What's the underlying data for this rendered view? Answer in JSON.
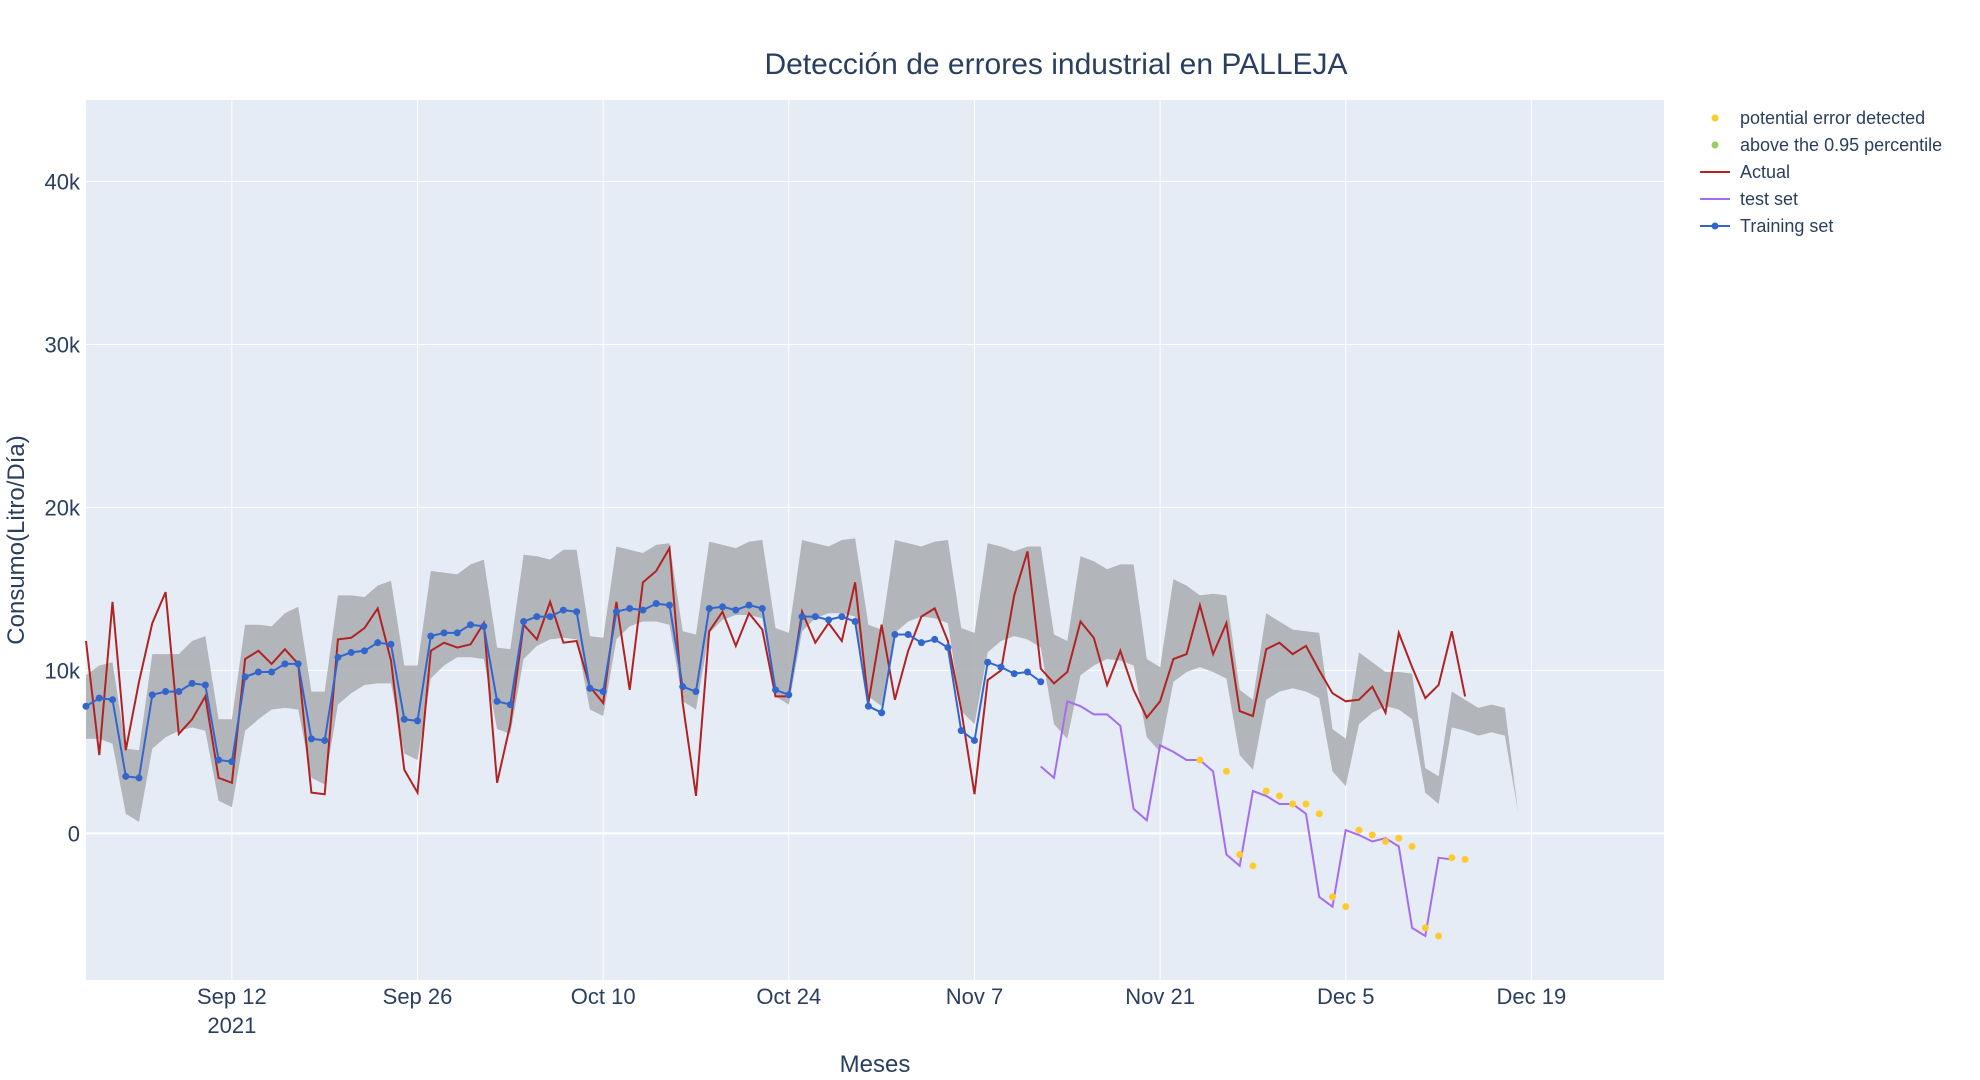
{
  "chart_data": {
    "type": "line",
    "title": "Detección de errores industrial en PALLEJA",
    "xlabel": "Meses",
    "ylabel": "Consumo(Litro/Día)",
    "x_start": "2021-09-01",
    "xlim": [
      "2021-09-01",
      "2021-12-29"
    ],
    "ylim": [
      -9000,
      45000
    ],
    "x_ticks": [
      {
        "date": "2021-09-12",
        "label": "Sep 12",
        "sublabel": "2021"
      },
      {
        "date": "2021-09-26",
        "label": "Sep 26",
        "sublabel": ""
      },
      {
        "date": "2021-10-10",
        "label": "Oct 10",
        "sublabel": ""
      },
      {
        "date": "2021-10-24",
        "label": "Oct 24",
        "sublabel": ""
      },
      {
        "date": "2021-11-07",
        "label": "Nov 7",
        "sublabel": ""
      },
      {
        "date": "2021-11-21",
        "label": "Nov 21",
        "sublabel": ""
      },
      {
        "date": "2021-12-05",
        "label": "Dec 5",
        "sublabel": ""
      },
      {
        "date": "2021-12-19",
        "label": "Dec 19",
        "sublabel": ""
      }
    ],
    "y_ticks": [
      {
        "value": 0,
        "label": "0"
      },
      {
        "value": 10000,
        "label": "10k"
      },
      {
        "value": 20000,
        "label": "20k"
      },
      {
        "value": 30000,
        "label": "30k"
      },
      {
        "value": 40000,
        "label": "40k"
      }
    ],
    "legend": {
      "position": "top-right",
      "items": [
        {
          "label": "potential error detected",
          "color": "#fecb2f",
          "symbol": "marker"
        },
        {
          "label": "above the 0.95 percentile",
          "color": "#9ccc65",
          "symbol": "marker"
        },
        {
          "label": "Actual",
          "color": "#b22222",
          "symbol": "line"
        },
        {
          "label": "test set",
          "color": "#a66cf0",
          "symbol": "line"
        },
        {
          "label": "Training set",
          "color": "#3366cc",
          "symbol": "line+marker"
        }
      ]
    },
    "band": {
      "name": "prediction interval",
      "color": "#a9abae",
      "upper": [
        9700,
        10300,
        10500,
        5200,
        5100,
        11000,
        11000,
        11000,
        11800,
        12100,
        7000,
        7000,
        12800,
        12800,
        12700,
        13500,
        13900,
        8700,
        8700,
        14600,
        14600,
        14500,
        15200,
        15500,
        10300,
        10300,
        16100,
        16000,
        15900,
        16500,
        16800,
        11400,
        11300,
        17100,
        17000,
        16800,
        17400,
        17400,
        12100,
        12000,
        17600,
        17400,
        17200,
        17700,
        17800,
        12400,
        12200,
        17900,
        17700,
        17500,
        17900,
        18000,
        12600,
        12300,
        18000,
        17800,
        17600,
        18000,
        18100,
        12800,
        12500,
        18000,
        17800,
        17600,
        17900,
        18000,
        12600,
        12300,
        17800,
        17600,
        17300,
        17600,
        17600,
        12200,
        11800,
        17000,
        16700,
        16200,
        16500,
        16500,
        10700,
        10200,
        15600,
        15200,
        14600,
        14700,
        14600,
        8800,
        8200,
        13500,
        13000,
        12500,
        12400,
        12300,
        6400,
        5800,
        11100,
        10500,
        9900,
        9900,
        9800,
        4000,
        3500,
        8700,
        8200,
        7700,
        7900,
        7700,
        1300
      ],
      "lower": [
        5800,
        5800,
        5500,
        1200,
        700,
        5200,
        5900,
        6300,
        6500,
        6300,
        2000,
        1600,
        6300,
        7000,
        7600,
        7700,
        7600,
        3400,
        3000,
        7900,
        8600,
        9100,
        9200,
        9200,
        4900,
        4500,
        9500,
        10300,
        10800,
        10800,
        10700,
        6400,
        6100,
        10700,
        11500,
        11900,
        12000,
        11900,
        7600,
        7200,
        11900,
        12700,
        13000,
        13000,
        12800,
        8100,
        7600,
        12300,
        13100,
        13400,
        13400,
        13200,
        8400,
        7900,
        12400,
        13200,
        13500,
        13500,
        13300,
        8400,
        7800,
        12300,
        13000,
        13300,
        13200,
        12900,
        7500,
        6700,
        11100,
        11800,
        12100,
        11900,
        11400,
        6700,
        5800,
        9700,
        10300,
        10700,
        10600,
        10300,
        5900,
        5000,
        9300,
        9900,
        10200,
        9900,
        9500,
        4800,
        3900,
        8200,
        8700,
        8900,
        8700,
        8300,
        3800,
        2900,
        6700,
        7400,
        7800,
        7600,
        7000,
        2500,
        1800,
        6500,
        6300,
        6000,
        6200,
        6000,
        1300
      ]
    },
    "series": [
      {
        "name": "Actual",
        "color": "#b22222",
        "values": [
          11800,
          4800,
          14200,
          5100,
          9300,
          12900,
          14800,
          6100,
          7000,
          8400,
          3400,
          3100,
          10700,
          11200,
          10400,
          11300,
          10400,
          2500,
          2400,
          11900,
          12000,
          12600,
          13800,
          10600,
          3900,
          2500,
          11200,
          11700,
          11400,
          11600,
          12900,
          3100,
          6700,
          12800,
          11900,
          14200,
          11700,
          11800,
          9000,
          8000,
          14200,
          8800,
          15400,
          16100,
          17500,
          8000,
          2300,
          12400,
          13600,
          11500,
          13500,
          12500,
          8400,
          8400,
          13600,
          11700,
          12900,
          11800,
          15400,
          8000,
          12800,
          8200,
          11200,
          13300,
          13800,
          11800,
          7600,
          2400,
          9400,
          10000,
          14600,
          17300,
          10100,
          9200,
          9900,
          13000,
          12000,
          9100,
          11200,
          8800,
          7100,
          8100,
          10700,
          11000,
          14000,
          11000,
          12900,
          7500,
          7200,
          11300,
          11700,
          11000,
          11500,
          10000,
          8600,
          8100,
          8200,
          9000,
          7400,
          12300,
          10200,
          8300,
          9100,
          12400,
          8400
        ]
      },
      {
        "name": "test set",
        "color": "#a66cf0",
        "start_index": 72,
        "values": [
          4100,
          3400,
          8100,
          7800,
          7300,
          7300,
          6600,
          1500,
          800,
          5400,
          5000,
          4500,
          4500,
          3800,
          -1300,
          -2000,
          2600,
          2300,
          1800,
          1800,
          1200,
          -3900,
          -4500,
          200,
          -100,
          -500,
          -300,
          -800,
          -5800,
          -6300,
          -1500,
          -1600
        ]
      },
      {
        "name": "Training set",
        "color": "#3366cc",
        "values": [
          7800,
          8300,
          8200,
          3500,
          3400,
          8500,
          8700,
          8700,
          9200,
          9100,
          4500,
          4400,
          9600,
          9900,
          9900,
          10400,
          10400,
          5800,
          5700,
          10800,
          11100,
          11200,
          11700,
          11600,
          7000,
          6900,
          12100,
          12300,
          12300,
          12800,
          12700,
          8100,
          7900,
          13000,
          13300,
          13300,
          13700,
          13600,
          8900,
          8700,
          13600,
          13800,
          13700,
          14100,
          14000,
          9000,
          8700,
          13800,
          13900,
          13700,
          14000,
          13800,
          8800,
          8500,
          13300,
          13300,
          13100,
          13300,
          13000,
          7800,
          7400,
          12200,
          12200,
          11700,
          11900,
          11400,
          6300,
          5700,
          10500,
          10200,
          9800,
          9900,
          9300
        ]
      },
      {
        "name": "potential error detected",
        "color": "#fecb2f",
        "type": "scatter",
        "x_index": [
          84,
          86,
          87,
          88,
          89,
          90,
          91,
          92,
          93,
          94,
          95,
          96,
          97,
          98,
          99,
          100,
          101,
          102,
          103,
          104
        ],
        "values": [
          4500,
          3800,
          -1300,
          -2000,
          2600,
          2300,
          1800,
          1800,
          1200,
          -3900,
          -4500,
          200,
          -100,
          -500,
          -300,
          -800,
          -5800,
          -6300,
          -1500,
          -1600
        ]
      },
      {
        "name": "above the 0.95 percentile",
        "color": "#9ccc65",
        "type": "scatter",
        "x_index": [],
        "values": []
      }
    ]
  }
}
